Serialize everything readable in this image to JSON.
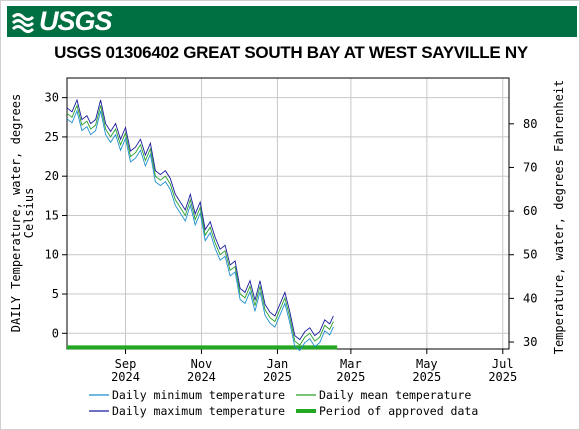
{
  "header": {
    "logo_text": "USGS",
    "logo_icon": "usgs-wave-icon",
    "banner_color": "#006f41"
  },
  "chart_data": {
    "type": "line",
    "title": "USGS 01306402 GREAT SOUTH BAY AT WEST SAYVILLE NY",
    "ylabel_left": [
      "DAILY Temperature, water, degrees",
      "Celsius"
    ],
    "ylabel_right": "Temperature, water, degrees Fahrenheit",
    "xlim": [
      "2024-07-16",
      "2025-07-06"
    ],
    "ylim_left": [
      -2,
      32.5
    ],
    "ylim_right": [
      28.4,
      90.5
    ],
    "x_ticks": [
      {
        "date": "2024-09-01",
        "label": [
          "Sep",
          "2024"
        ]
      },
      {
        "date": "2024-11-01",
        "label": [
          "Nov",
          "2024"
        ]
      },
      {
        "date": "2025-01-01",
        "label": [
          "Jan",
          "2025"
        ]
      },
      {
        "date": "2025-03-01",
        "label": [
          "Mar",
          "2025"
        ]
      },
      {
        "date": "2025-05-01",
        "label": [
          "May",
          "2025"
        ]
      },
      {
        "date": "2025-07-01",
        "label": [
          "Jul",
          "2025"
        ]
      }
    ],
    "y_ticks_left": [
      0,
      5,
      10,
      15,
      20,
      25,
      30
    ],
    "y_ticks_right": [
      30,
      40,
      50,
      60,
      70,
      80
    ],
    "grid": true,
    "legend_position": "bottom",
    "series": [
      {
        "name": "Daily minimum temperature",
        "color": "#1f8fd0",
        "offset": -0.7,
        "x": [
          "2024-07-16",
          "2024-07-20",
          "2024-07-24",
          "2024-07-28",
          "2024-08-01",
          "2024-08-04",
          "2024-08-08",
          "2024-08-12",
          "2024-08-16",
          "2024-08-20",
          "2024-08-24",
          "2024-08-28",
          "2024-09-01",
          "2024-09-05",
          "2024-09-09",
          "2024-09-13",
          "2024-09-17",
          "2024-09-21",
          "2024-09-25",
          "2024-09-29",
          "2024-10-03",
          "2024-10-07",
          "2024-10-11",
          "2024-10-15",
          "2024-10-19",
          "2024-10-23",
          "2024-10-27",
          "2024-10-31",
          "2024-11-04",
          "2024-11-08",
          "2024-11-12",
          "2024-11-16",
          "2024-11-20",
          "2024-11-24",
          "2024-11-28",
          "2024-12-02",
          "2024-12-06",
          "2024-12-10",
          "2024-12-14",
          "2024-12-18",
          "2024-12-22",
          "2024-12-26",
          "2024-12-30",
          "2025-01-03",
          "2025-01-07",
          "2025-01-11",
          "2025-01-15",
          "2025-01-19",
          "2025-01-23",
          "2025-01-27",
          "2025-01-31",
          "2025-02-04",
          "2025-02-08",
          "2025-02-12",
          "2025-02-15"
        ],
        "y": [
          28,
          27.5,
          29,
          26.5,
          27,
          26,
          26.5,
          29,
          26,
          25,
          26,
          24,
          25.5,
          22.5,
          23,
          24,
          22,
          23.5,
          20,
          19.5,
          20,
          19,
          17,
          16,
          15,
          17,
          14.5,
          16,
          12.5,
          13.5,
          11.5,
          10,
          10.5,
          8,
          8.5,
          5,
          4.5,
          6,
          3.5,
          6,
          3,
          2,
          1.5,
          3,
          4.5,
          2,
          -1,
          -1.5,
          -0.5,
          0,
          -1,
          -0.5,
          1,
          0.5,
          1.5
        ]
      },
      {
        "name": "Daily mean temperature",
        "color": "#2aa02a",
        "offset": 0,
        "x": [
          "2024-07-16",
          "2024-07-20",
          "2024-07-24",
          "2024-07-28",
          "2024-08-01",
          "2024-08-04",
          "2024-08-08",
          "2024-08-12",
          "2024-08-16",
          "2024-08-20",
          "2024-08-24",
          "2024-08-28",
          "2024-09-01",
          "2024-09-05",
          "2024-09-09",
          "2024-09-13",
          "2024-09-17",
          "2024-09-21",
          "2024-09-25",
          "2024-09-29",
          "2024-10-03",
          "2024-10-07",
          "2024-10-11",
          "2024-10-15",
          "2024-10-19",
          "2024-10-23",
          "2024-10-27",
          "2024-10-31",
          "2024-11-04",
          "2024-11-08",
          "2024-11-12",
          "2024-11-16",
          "2024-11-20",
          "2024-11-24",
          "2024-11-28",
          "2024-12-02",
          "2024-12-06",
          "2024-12-10",
          "2024-12-14",
          "2024-12-18",
          "2024-12-22",
          "2024-12-26",
          "2024-12-30",
          "2025-01-03",
          "2025-01-07",
          "2025-01-11",
          "2025-01-15",
          "2025-01-19",
          "2025-01-23",
          "2025-01-27",
          "2025-01-31",
          "2025-02-04",
          "2025-02-08",
          "2025-02-12",
          "2025-02-15"
        ],
        "y": [
          28,
          27.5,
          29,
          26.5,
          27,
          26,
          26.5,
          29,
          26,
          25,
          26,
          24,
          25.5,
          22.5,
          23,
          24,
          22,
          23.5,
          20,
          19.5,
          20,
          19,
          17,
          16,
          15,
          17,
          14.5,
          16,
          12.5,
          13.5,
          11.5,
          10,
          10.5,
          8,
          8.5,
          5,
          4.5,
          6,
          3.5,
          6,
          3,
          2,
          1.5,
          3,
          4.5,
          2,
          -1,
          -1.5,
          -0.5,
          0,
          -1,
          -0.5,
          1,
          0.5,
          1.5
        ]
      },
      {
        "name": "Daily maximum temperature",
        "color": "#1a1aa0",
        "offset": 0.7,
        "x": [
          "2024-07-16",
          "2024-07-20",
          "2024-07-24",
          "2024-07-28",
          "2024-08-01",
          "2024-08-04",
          "2024-08-08",
          "2024-08-12",
          "2024-08-16",
          "2024-08-20",
          "2024-08-24",
          "2024-08-28",
          "2024-09-01",
          "2024-09-05",
          "2024-09-09",
          "2024-09-13",
          "2024-09-17",
          "2024-09-21",
          "2024-09-25",
          "2024-09-29",
          "2024-10-03",
          "2024-10-07",
          "2024-10-11",
          "2024-10-15",
          "2024-10-19",
          "2024-10-23",
          "2024-10-27",
          "2024-10-31",
          "2024-11-04",
          "2024-11-08",
          "2024-11-12",
          "2024-11-16",
          "2024-11-20",
          "2024-11-24",
          "2024-11-28",
          "2024-12-02",
          "2024-12-06",
          "2024-12-10",
          "2024-12-14",
          "2024-12-18",
          "2024-12-22",
          "2024-12-26",
          "2024-12-30",
          "2025-01-03",
          "2025-01-07",
          "2025-01-11",
          "2025-01-15",
          "2025-01-19",
          "2025-01-23",
          "2025-01-27",
          "2025-01-31",
          "2025-02-04",
          "2025-02-08",
          "2025-02-12",
          "2025-02-15"
        ],
        "y": [
          28,
          27.5,
          29,
          26.5,
          27,
          26,
          26.5,
          29,
          26,
          25,
          26,
          24,
          25.5,
          22.5,
          23,
          24,
          22,
          23.5,
          20,
          19.5,
          20,
          19,
          17,
          16,
          15,
          17,
          14.5,
          16,
          12.5,
          13.5,
          11.5,
          10,
          10.5,
          8,
          8.5,
          5,
          4.5,
          6,
          3.5,
          6,
          3,
          2,
          1.5,
          3,
          4.5,
          2,
          -1,
          -1.5,
          -0.5,
          0,
          -1,
          -0.5,
          1,
          0.5,
          1.5
        ]
      }
    ],
    "approved_period": {
      "name": "Period of approved data",
      "color": "#22a822",
      "start": "2024-07-16",
      "end": "2025-02-18",
      "y": -1.8
    }
  }
}
